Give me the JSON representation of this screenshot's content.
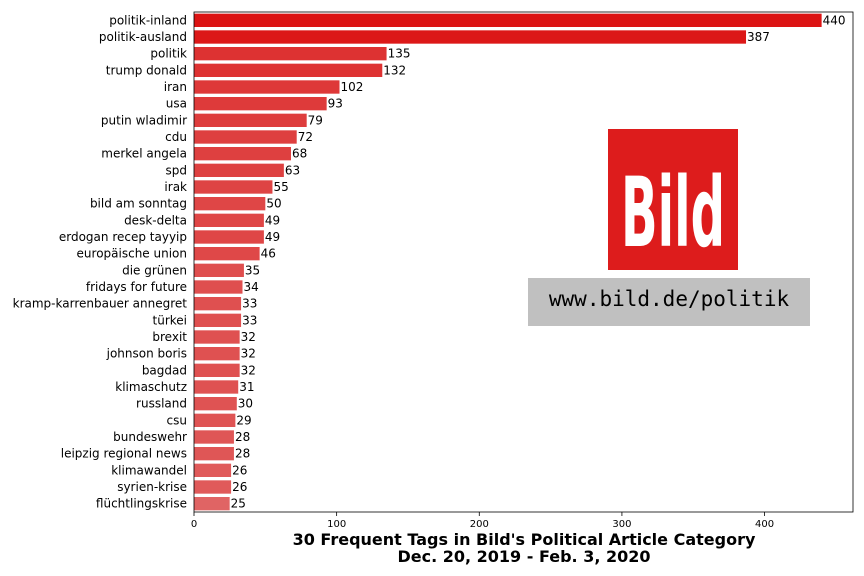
{
  "chart_data": {
    "type": "bar",
    "orientation": "horizontal",
    "title": [
      "30 Frequent Tags in Bild's Political Article Category",
      "Dec. 20, 2019 - Feb. 3, 2020"
    ],
    "categories": [
      "politik-inland",
      "politik-ausland",
      "politik",
      "trump donald",
      "iran",
      "usa",
      "putin wladimir",
      "cdu",
      "merkel angela",
      "spd",
      "irak",
      "bild am sonntag",
      "desk-delta",
      "erdogan recep tayyip",
      "europäische union",
      "die grünen",
      "fridays for future",
      "kramp-karrenbauer annegret",
      "türkei",
      "brexit",
      "johnson boris",
      "bagdad",
      "klimaschutz",
      "russland",
      "csu",
      "bundeswehr",
      "leipzig regional news",
      "klimawandel",
      "syrien-krise",
      "flüchtlingskrise"
    ],
    "values": [
      440,
      387,
      135,
      132,
      102,
      93,
      79,
      72,
      68,
      63,
      55,
      50,
      49,
      49,
      46,
      35,
      34,
      33,
      33,
      32,
      32,
      32,
      31,
      30,
      29,
      28,
      28,
      26,
      26,
      25
    ],
    "xlim": [
      0,
      462
    ],
    "xticks": [
      0,
      100,
      200,
      300,
      400
    ],
    "xlabel": "",
    "ylabel": "",
    "grid": false,
    "colors": {
      "max": "#dc1414",
      "min": "#e06464"
    }
  },
  "logo": {
    "text": "Bild",
    "bg": "#dd1c1c"
  },
  "url_box": {
    "text": "www.bild.de/politik",
    "bg": "#c0c0c0"
  }
}
